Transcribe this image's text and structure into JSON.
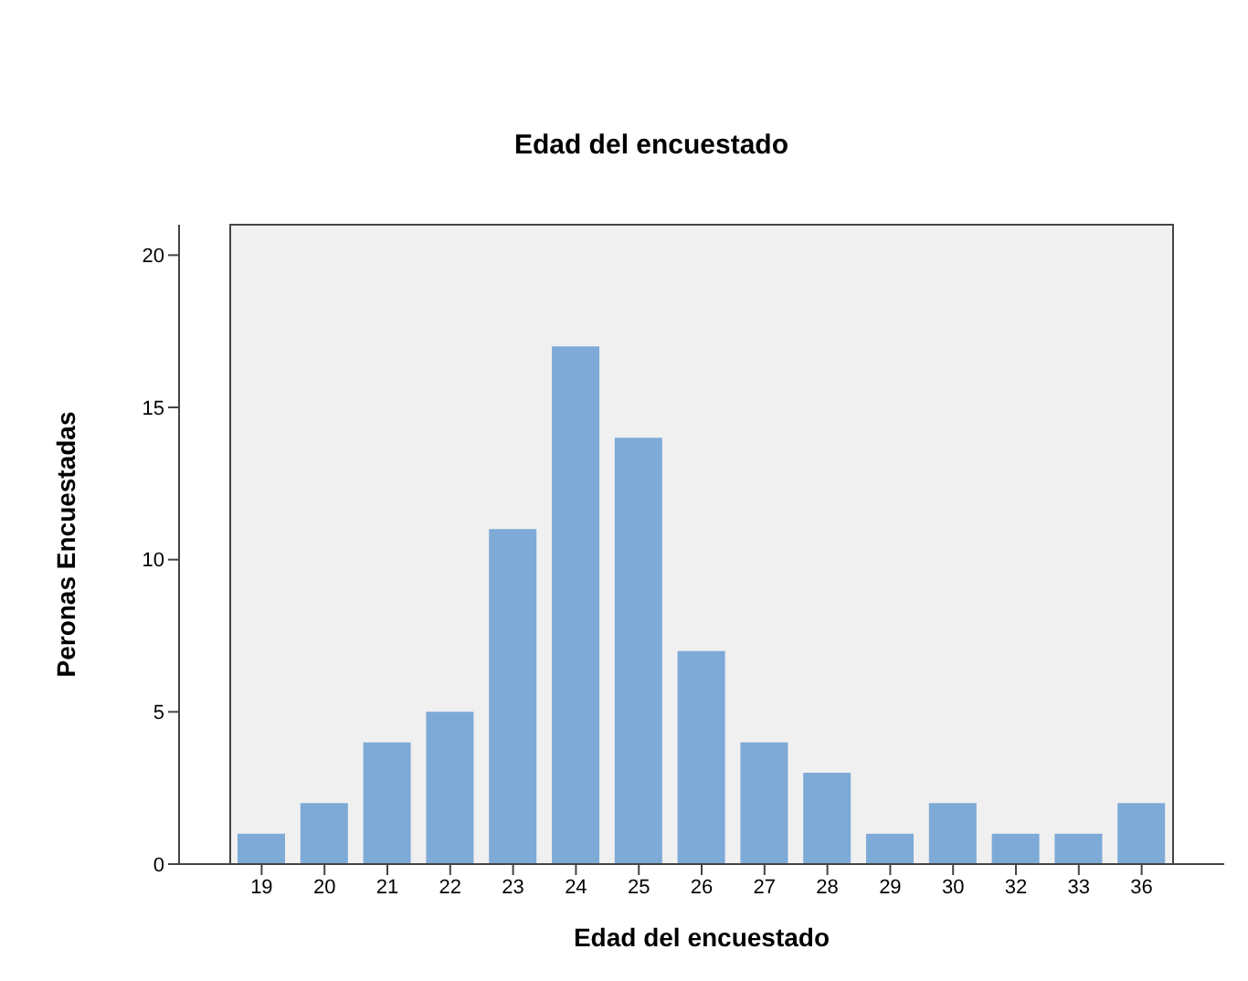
{
  "chart_data": {
    "type": "bar",
    "title": "Edad del encuestado",
    "xlabel": "Edad del encuestado",
    "ylabel": "Peronas Encuestadas",
    "categories": [
      "19",
      "20",
      "21",
      "22",
      "23",
      "24",
      "25",
      "26",
      "27",
      "28",
      "29",
      "30",
      "32",
      "33",
      "36"
    ],
    "values": [
      1,
      2,
      4,
      5,
      11,
      17,
      14,
      7,
      4,
      3,
      1,
      2,
      1,
      1,
      2
    ],
    "color": "#7eaad7",
    "ylim": [
      0,
      21
    ],
    "yticks": [
      0,
      5,
      10,
      15,
      20
    ],
    "grid": false,
    "legend": false
  }
}
